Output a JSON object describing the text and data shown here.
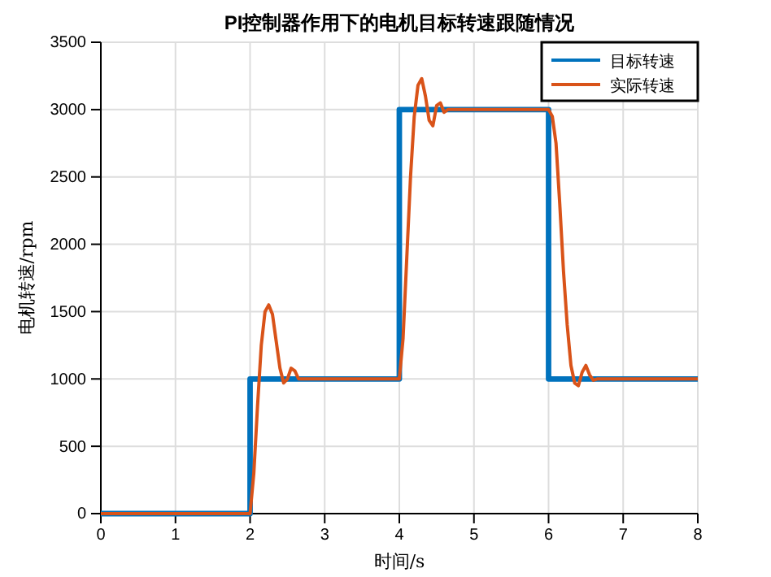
{
  "chart_data": {
    "type": "line",
    "title": "PI控制器作用下的电机目标转速跟随情况",
    "xlabel": "时间/s",
    "ylabel": "电机转速/rpm",
    "xlim": [
      0,
      8
    ],
    "ylim": [
      0,
      3500
    ],
    "xticks": [
      0,
      1,
      2,
      3,
      4,
      5,
      6,
      7,
      8
    ],
    "yticks": [
      0,
      500,
      1000,
      1500,
      2000,
      2500,
      3000,
      3500
    ],
    "grid": true,
    "legend": "top right",
    "line_style": "solid",
    "marker": "none",
    "series": [
      {
        "name": "目标转速",
        "color": "#0072bd",
        "x": [
          0,
          2,
          2,
          4,
          4,
          6,
          6,
          8
        ],
        "values": [
          0,
          0,
          1000,
          1000,
          3000,
          3000,
          1000,
          1000
        ]
      },
      {
        "name": "实际转速",
        "color": "#d95319",
        "x": [
          0,
          2,
          2.05,
          2.1,
          2.15,
          2.2,
          2.25,
          2.3,
          2.35,
          2.4,
          2.45,
          2.5,
          2.55,
          2.6,
          2.65,
          2.7,
          3,
          4,
          4.05,
          4.1,
          4.15,
          4.2,
          4.25,
          4.3,
          4.35,
          4.4,
          4.45,
          4.5,
          4.55,
          4.6,
          4.65,
          4.7,
          5,
          6,
          6.05,
          6.1,
          6.15,
          6.2,
          6.25,
          6.3,
          6.35,
          6.4,
          6.45,
          6.5,
          6.55,
          6.6,
          6.65,
          7,
          8
        ],
        "values": [
          0,
          0,
          300,
          800,
          1250,
          1500,
          1550,
          1480,
          1280,
          1080,
          970,
          1000,
          1080,
          1060,
          1000,
          1000,
          1000,
          1000,
          1300,
          1900,
          2500,
          2950,
          3180,
          3230,
          3100,
          2920,
          2880,
          3030,
          3050,
          2980,
          3000,
          3000,
          3000,
          3000,
          2950,
          2750,
          2300,
          1800,
          1400,
          1100,
          970,
          950,
          1050,
          1100,
          1030,
          990,
          1000,
          1000,
          1000
        ]
      }
    ]
  }
}
